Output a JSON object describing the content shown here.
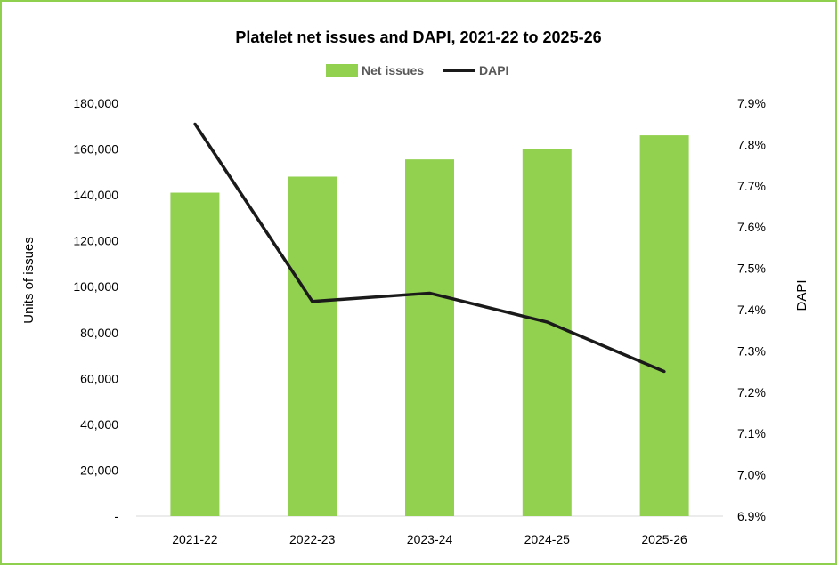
{
  "chart_data": {
    "type": "bar",
    "title": "Platelet net issues and DAPI, 2021-22 to 2025-26",
    "categories": [
      "2021-22",
      "2022-23",
      "2023-24",
      "2024-25",
      "2025-26"
    ],
    "series": [
      {
        "name": "Net issues",
        "type": "bar",
        "axis": "left",
        "values": [
          141000,
          148000,
          155500,
          160000,
          166000
        ]
      },
      {
        "name": "DAPI",
        "type": "line",
        "axis": "right",
        "values": [
          7.85,
          7.42,
          7.44,
          7.37,
          7.25
        ]
      }
    ],
    "ylabel": "Units of issues",
    "y2label": "DAPI",
    "ylim": [
      0,
      180000
    ],
    "y2lim": [
      6.9,
      7.9
    ],
    "yticks": [
      "-",
      "20,000",
      "40,000",
      "60,000",
      "80,000",
      "100,000",
      "120,000",
      "140,000",
      "160,000",
      "180,000"
    ],
    "y2ticks": [
      "6.9%",
      "7.0%",
      "7.1%",
      "7.2%",
      "7.3%",
      "7.4%",
      "7.5%",
      "7.6%",
      "7.7%",
      "7.8%",
      "7.9%"
    ],
    "legend_position": "top",
    "grid": false,
    "colors": {
      "bar": "#92d050",
      "line": "#1a1a1a",
      "frame": "#8fd14f"
    }
  }
}
